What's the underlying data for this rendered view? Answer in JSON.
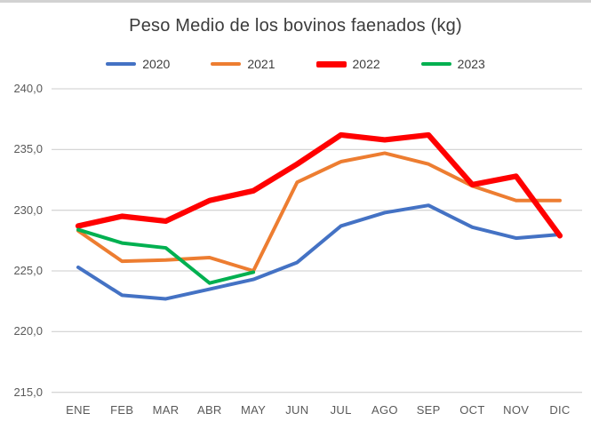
{
  "title": "Peso Medio de los bovinos faenados (kg)",
  "chart_data": {
    "type": "line",
    "title": "Peso Medio de los bovinos faenados (kg)",
    "xlabel": "",
    "ylabel": "",
    "categories": [
      "ENE",
      "FEB",
      "MAR",
      "ABR",
      "MAY",
      "JUN",
      "JUL",
      "AGO",
      "SEP",
      "OCT",
      "NOV",
      "DIC"
    ],
    "series": [
      {
        "name": "2020",
        "color": "#4472C4",
        "emphasis": false,
        "values": [
          225.3,
          223.0,
          222.7,
          223.5,
          224.3,
          225.7,
          228.7,
          229.8,
          230.4,
          228.6,
          227.7,
          228.0
        ]
      },
      {
        "name": "2021",
        "color": "#ED7D31",
        "emphasis": false,
        "values": [
          228.3,
          225.8,
          225.9,
          226.1,
          225.0,
          232.3,
          234.0,
          234.7,
          233.8,
          232.0,
          230.8,
          230.8
        ]
      },
      {
        "name": "2022",
        "color": "#FF0000",
        "emphasis": true,
        "values": [
          228.7,
          229.5,
          229.1,
          230.8,
          231.6,
          233.8,
          236.2,
          235.8,
          236.2,
          232.1,
          232.8,
          227.9
        ]
      },
      {
        "name": "2023",
        "color": "#00B050",
        "emphasis": false,
        "values": [
          228.4,
          227.3,
          226.9,
          224.0,
          224.9
        ]
      }
    ],
    "ylim": [
      215.0,
      240.0
    ],
    "ytick_step": 5,
    "yticks": [
      240.0,
      235.0,
      230.0,
      225.0,
      220.0,
      215.0
    ],
    "ytick_labels": [
      "240,0",
      "235,0",
      "230,0",
      "225,0",
      "220,0",
      "215,0"
    ],
    "grid": "horizontal",
    "grid_color": "#d6d6d6",
    "legend_position": "top",
    "legend_labels": [
      "2020",
      "2021",
      "2022",
      "2023"
    ]
  }
}
